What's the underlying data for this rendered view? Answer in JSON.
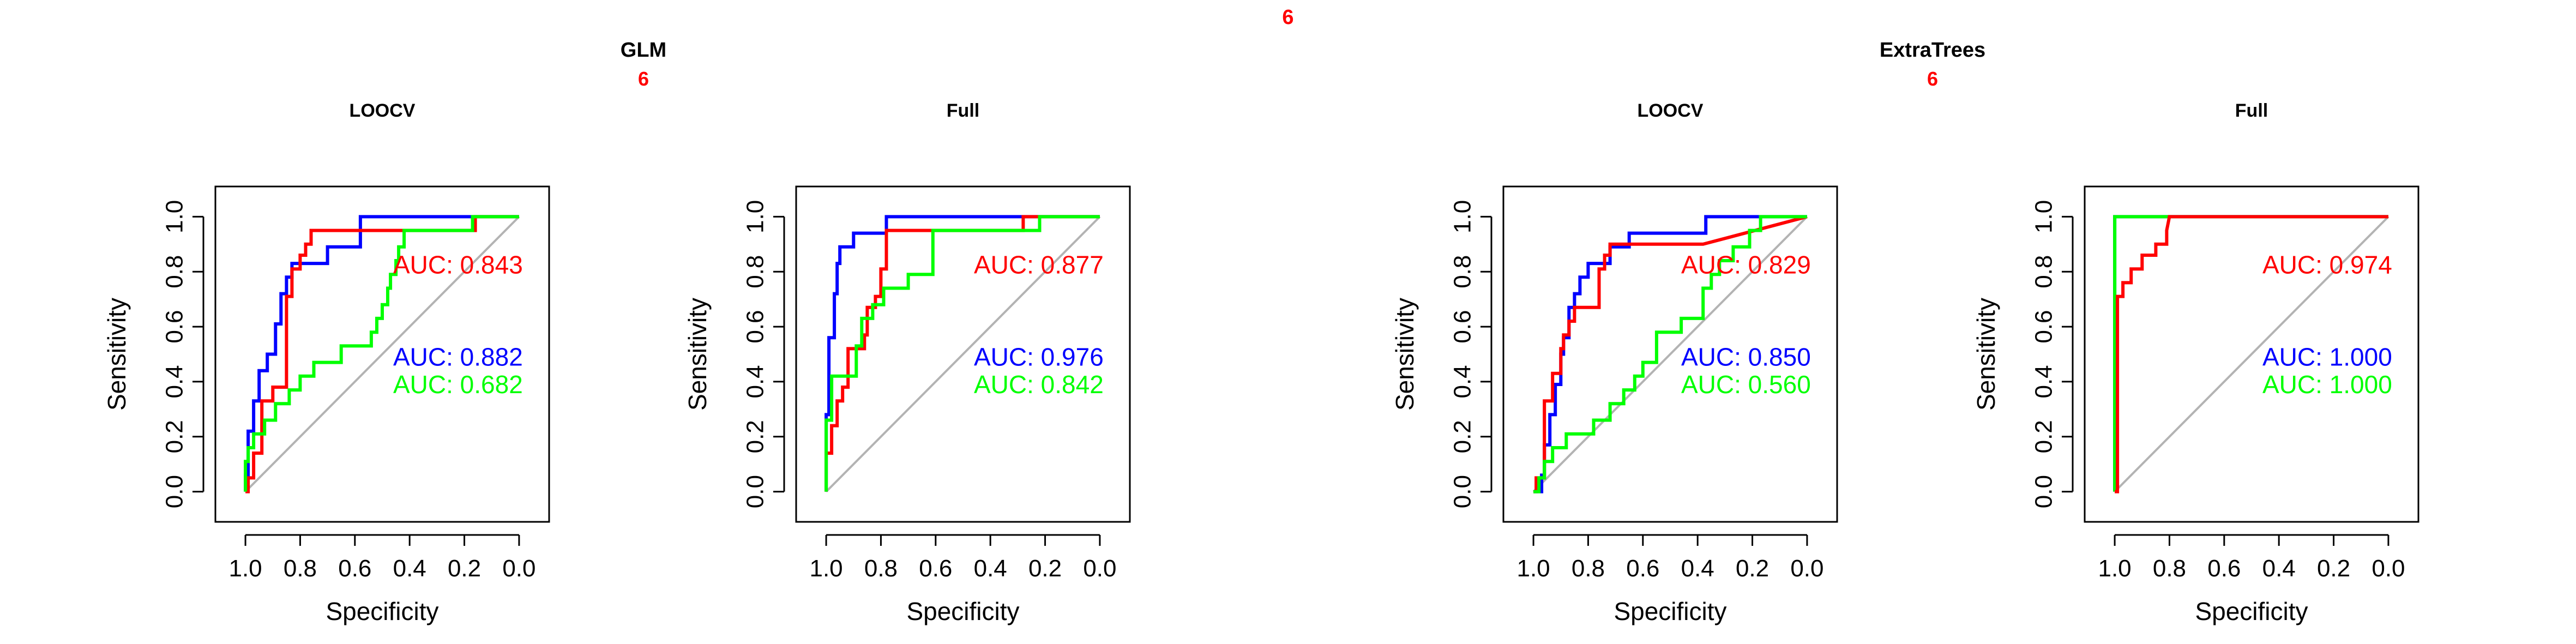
{
  "figure": {
    "top_label": "6"
  },
  "groups": [
    {
      "title": "GLM",
      "label": "6"
    },
    {
      "title": "ExtraTrees",
      "label": "6"
    }
  ],
  "chart_data": [
    {
      "type": "line",
      "title": "LOOCV",
      "xlabel": "Specificity",
      "ylabel": "Sensitivity",
      "xlim": [
        1.0,
        0.0
      ],
      "ylim": [
        0.0,
        1.0
      ],
      "xticks": [
        "1.0",
        "0.8",
        "0.6",
        "0.4",
        "0.2",
        "0.0"
      ],
      "yticks": [
        "0.0",
        "0.2",
        "0.4",
        "0.6",
        "0.8",
        "1.0"
      ],
      "colors": [
        "#0000ff",
        "#ff0000",
        "#00ff00"
      ],
      "series": [
        {
          "color": "#0000ff",
          "auc_label": "AUC: 0.882",
          "x": [
            1,
            1,
            0.99,
            0.99,
            0.97,
            0.97,
            0.95,
            0.95,
            0.92,
            0.92,
            0.89,
            0.89,
            0.87,
            0.87,
            0.85,
            0.85,
            0.83,
            0.83,
            0.8,
            0.8,
            0.76,
            0.76,
            0.7,
            0.7,
            0.63,
            0.63,
            0.58,
            0.58,
            0.0
          ],
          "y": [
            0,
            0.06,
            0.06,
            0.22,
            0.22,
            0.33,
            0.33,
            0.44,
            0.44,
            0.5,
            0.5,
            0.61,
            0.61,
            0.72,
            0.72,
            0.78,
            0.78,
            0.83,
            0.83,
            0.83,
            0.83,
            0.83,
            0.83,
            0.89,
            0.89,
            0.89,
            0.89,
            1,
            1
          ]
        },
        {
          "color": "#ff0000",
          "auc_label": "AUC: 0.843",
          "x": [
            1,
            0.99,
            0.99,
            0.97,
            0.97,
            0.94,
            0.94,
            0.9,
            0.9,
            0.85,
            0.85,
            0.83,
            0.83,
            0.8,
            0.8,
            0.78,
            0.78,
            0.76,
            0.76,
            0.74,
            0.74,
            0.16,
            0.16,
            0.0
          ],
          "y": [
            0,
            0,
            0.05,
            0.05,
            0.14,
            0.14,
            0.33,
            0.33,
            0.38,
            0.38,
            0.71,
            0.71,
            0.81,
            0.81,
            0.86,
            0.86,
            0.9,
            0.9,
            0.95,
            0.95,
            0.95,
            0.95,
            1,
            1
          ]
        },
        {
          "color": "#00ff00",
          "auc_label": "AUC: 0.682",
          "x": [
            1,
            1,
            0.99,
            0.99,
            0.97,
            0.97,
            0.93,
            0.93,
            0.89,
            0.89,
            0.84,
            0.84,
            0.8,
            0.8,
            0.75,
            0.75,
            0.65,
            0.65,
            0.54,
            0.54,
            0.52,
            0.52,
            0.5,
            0.5,
            0.48,
            0.48,
            0.47,
            0.47,
            0.45,
            0.45,
            0.44,
            0.44,
            0.42,
            0.42,
            0.17,
            0.17,
            0.0
          ],
          "y": [
            0,
            0.11,
            0.11,
            0.16,
            0.16,
            0.21,
            0.21,
            0.26,
            0.26,
            0.32,
            0.32,
            0.37,
            0.37,
            0.42,
            0.42,
            0.47,
            0.47,
            0.53,
            0.53,
            0.58,
            0.58,
            0.63,
            0.63,
            0.68,
            0.68,
            0.74,
            0.74,
            0.79,
            0.79,
            0.84,
            0.84,
            0.89,
            0.89,
            0.95,
            0.95,
            1,
            1
          ]
        }
      ]
    },
    {
      "type": "line",
      "title": "Full",
      "xlabel": "Specificity",
      "ylabel": "Sensitivity",
      "xlim": [
        1.0,
        0.0
      ],
      "ylim": [
        0.0,
        1.0
      ],
      "xticks": [
        "1.0",
        "0.8",
        "0.6",
        "0.4",
        "0.2",
        "0.0"
      ],
      "yticks": [
        "0.0",
        "0.2",
        "0.4",
        "0.6",
        "0.8",
        "1.0"
      ],
      "colors": [
        "#0000ff",
        "#ff0000",
        "#00ff00"
      ],
      "series": [
        {
          "color": "#0000ff",
          "auc_label": "AUC: 0.976",
          "x": [
            1,
            1,
            0.99,
            0.99,
            0.97,
            0.97,
            0.96,
            0.96,
            0.95,
            0.95,
            0.9,
            0.9,
            0.83,
            0.83,
            0.78,
            0.78,
            0.0
          ],
          "y": [
            0,
            0.28,
            0.28,
            0.56,
            0.56,
            0.72,
            0.72,
            0.83,
            0.83,
            0.89,
            0.89,
            0.94,
            0.94,
            0.94,
            0.94,
            1,
            1
          ]
        },
        {
          "color": "#ff0000",
          "auc_label": "AUC: 0.877",
          "x": [
            1,
            1,
            0.98,
            0.98,
            0.96,
            0.96,
            0.94,
            0.94,
            0.92,
            0.92,
            0.86,
            0.86,
            0.85,
            0.85,
            0.82,
            0.82,
            0.8,
            0.8,
            0.78,
            0.78,
            0.28,
            0.28,
            0.0
          ],
          "y": [
            0,
            0.14,
            0.14,
            0.24,
            0.24,
            0.33,
            0.33,
            0.38,
            0.38,
            0.52,
            0.52,
            0.57,
            0.57,
            0.67,
            0.67,
            0.71,
            0.71,
            0.81,
            0.81,
            0.95,
            0.95,
            1,
            1
          ]
        },
        {
          "color": "#00ff00",
          "auc_label": "AUC: 0.842",
          "x": [
            1,
            1,
            0.98,
            0.98,
            0.93,
            0.93,
            0.89,
            0.89,
            0.87,
            0.87,
            0.83,
            0.83,
            0.79,
            0.79,
            0.7,
            0.7,
            0.61,
            0.61,
            0.22,
            0.22,
            0.0
          ],
          "y": [
            0,
            0.26,
            0.26,
            0.42,
            0.42,
            0.42,
            0.42,
            0.53,
            0.53,
            0.63,
            0.63,
            0.68,
            0.68,
            0.74,
            0.74,
            0.79,
            0.79,
            0.95,
            0.95,
            1,
            1
          ]
        }
      ]
    },
    {
      "type": "line",
      "title": "LOOCV",
      "xlabel": "Specificity",
      "ylabel": "Sensitivity",
      "xlim": [
        1.0,
        0.0
      ],
      "ylim": [
        0.0,
        1.0
      ],
      "xticks": [
        "1.0",
        "0.8",
        "0.6",
        "0.4",
        "0.2",
        "0.0"
      ],
      "yticks": [
        "0.0",
        "0.2",
        "0.4",
        "0.6",
        "0.8",
        "1.0"
      ],
      "colors": [
        "#0000ff",
        "#ff0000",
        "#00ff00"
      ],
      "series": [
        {
          "color": "#0000ff",
          "auc_label": "AUC: 0.850",
          "x": [
            1,
            0.97,
            0.97,
            0.96,
            0.96,
            0.94,
            0.94,
            0.92,
            0.92,
            0.9,
            0.9,
            0.89,
            0.89,
            0.87,
            0.87,
            0.85,
            0.85,
            0.83,
            0.83,
            0.8,
            0.8,
            0.72,
            0.72,
            0.68,
            0.68,
            0.65,
            0.65,
            0.37,
            0.37,
            0.0
          ],
          "y": [
            0,
            0,
            0.06,
            0.06,
            0.17,
            0.17,
            0.28,
            0.28,
            0.39,
            0.39,
            0.5,
            0.5,
            0.56,
            0.56,
            0.67,
            0.67,
            0.72,
            0.72,
            0.78,
            0.78,
            0.83,
            0.83,
            0.89,
            0.89,
            0.89,
            0.89,
            0.94,
            0.94,
            1,
            1
          ]
        },
        {
          "color": "#ff0000",
          "auc_label": "AUC: 0.829",
          "x": [
            1,
            0.99,
            0.99,
            0.96,
            0.96,
            0.93,
            0.93,
            0.9,
            0.9,
            0.89,
            0.89,
            0.87,
            0.87,
            0.85,
            0.85,
            0.76,
            0.76,
            0.74,
            0.74,
            0.72,
            0.72,
            0.68,
            0.68,
            0.38,
            0.0
          ],
          "y": [
            0,
            0,
            0.05,
            0.05,
            0.33,
            0.33,
            0.43,
            0.43,
            0.52,
            0.52,
            0.57,
            0.57,
            0.62,
            0.62,
            0.67,
            0.67,
            0.81,
            0.81,
            0.86,
            0.86,
            0.9,
            0.9,
            0.9,
            0.9,
            1
          ]
        },
        {
          "color": "#00ff00",
          "auc_label": "AUC: 0.560",
          "x": [
            1,
            0.98,
            0.98,
            0.96,
            0.96,
            0.93,
            0.93,
            0.88,
            0.88,
            0.78,
            0.78,
            0.72,
            0.72,
            0.67,
            0.67,
            0.63,
            0.63,
            0.6,
            0.6,
            0.55,
            0.55,
            0.46,
            0.46,
            0.38,
            0.38,
            0.35,
            0.35,
            0.32,
            0.32,
            0.27,
            0.27,
            0.21,
            0.21,
            0.17,
            0.17,
            0.0
          ],
          "y": [
            0,
            0,
            0.05,
            0.05,
            0.11,
            0.11,
            0.16,
            0.16,
            0.21,
            0.21,
            0.26,
            0.26,
            0.32,
            0.32,
            0.37,
            0.37,
            0.42,
            0.42,
            0.47,
            0.47,
            0.58,
            0.58,
            0.63,
            0.63,
            0.74,
            0.74,
            0.79,
            0.79,
            0.84,
            0.84,
            0.89,
            0.89,
            0.95,
            0.95,
            1,
            1
          ]
        }
      ]
    },
    {
      "type": "line",
      "title": "Full",
      "xlabel": "Specificity",
      "ylabel": "Sensitivity",
      "xlim": [
        1.0,
        0.0
      ],
      "ylim": [
        0.0,
        1.0
      ],
      "xticks": [
        "1.0",
        "0.8",
        "0.6",
        "0.4",
        "0.2",
        "0.0"
      ],
      "yticks": [
        "0.0",
        "0.2",
        "0.4",
        "0.6",
        "0.8",
        "1.0"
      ],
      "colors": [
        "#0000ff",
        "#ff0000",
        "#00ff00"
      ],
      "series": [
        {
          "color": "#0000ff",
          "auc_label": "AUC: 1.000",
          "x": [
            1,
            1,
            0.0
          ],
          "y": [
            0,
            1,
            1
          ]
        },
        {
          "color": "#00ff00",
          "auc_label": "AUC: 1.000",
          "x": [
            1,
            1,
            0.0
          ],
          "y": [
            0,
            1,
            1
          ]
        },
        {
          "color": "#ff0000",
          "auc_label": "AUC: 0.974",
          "x": [
            1,
            0.99,
            0.99,
            0.97,
            0.97,
            0.94,
            0.94,
            0.9,
            0.9,
            0.85,
            0.85,
            0.81,
            0.81,
            0.8,
            0.0
          ],
          "y": [
            0,
            0,
            0.71,
            0.71,
            0.76,
            0.76,
            0.81,
            0.81,
            0.86,
            0.86,
            0.9,
            0.9,
            0.95,
            1,
            1
          ]
        }
      ]
    }
  ]
}
